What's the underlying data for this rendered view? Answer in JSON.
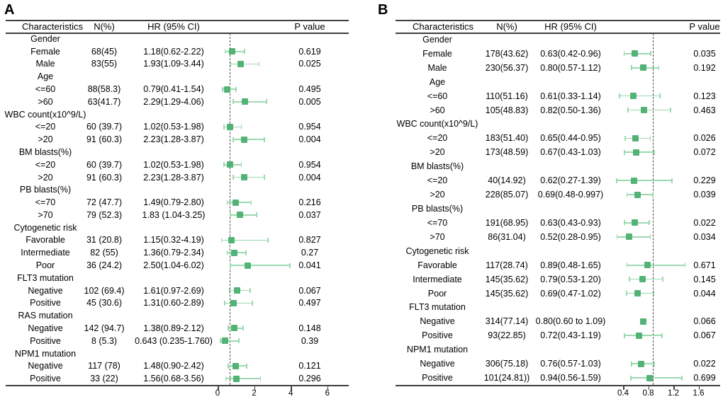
{
  "figure": {
    "type": "forest-plot-figure",
    "colors": {
      "marker": "#53b377",
      "whisker": "#9bd9b0",
      "reference_line": "#4a4a4a",
      "rule": "#3f3f3f",
      "text": "#000000"
    }
  },
  "chart_data": [
    {
      "type": "scatter",
      "subtype": "forest-plot",
      "panel_label": "A",
      "columns": {
        "characteristics": "Characteristics",
        "n": "N(%)",
        "hr": "HR (95% CI)",
        "p": "P value"
      },
      "x_ticks": [
        0,
        2,
        4,
        6
      ],
      "x_tick_labels": [
        "0",
        "2",
        "4",
        "6"
      ],
      "xlim": [
        -0.2,
        7.6
      ],
      "ref_line": 1,
      "legend": "none",
      "grid": false,
      "rows": [
        {
          "label": "Gender",
          "group": true
        },
        {
          "label": "Female",
          "n": "68(45)",
          "hr_text": "1.18(0.62-2.22)",
          "p": "0.619",
          "hr": 1.18,
          "lo": 0.62,
          "hi": 2.22
        },
        {
          "label": "Male",
          "n": "83(55)",
          "hr_text": "1.93(1.09-3.44)",
          "p": "0.025",
          "hr": 1.93,
          "lo": 1.09,
          "hi": 3.44
        },
        {
          "label": "Age",
          "group": true
        },
        {
          "label": "<=60",
          "n": "88(58.3)",
          "hr_text": "0.79(0.41-1.54)",
          "p": "0.495",
          "hr": 0.79,
          "lo": 0.41,
          "hi": 1.54
        },
        {
          "label": ">60",
          "n": "63(41.7)",
          "hr_text": "2.29(1.29-4.06)",
          "p": "0.005",
          "hr": 2.29,
          "lo": 1.29,
          "hi": 4.06
        },
        {
          "label": "WBC count(x10^9/L)",
          "group": true
        },
        {
          "label": "<=20",
          "n": "60 (39.7)",
          "hr_text": "1.02(0.53-1.98)",
          "p": "0.954",
          "hr": 1.02,
          "lo": 0.53,
          "hi": 1.98
        },
        {
          "label": ">20",
          "n": "91 (60.3)",
          "hr_text": "2.23(1.28-3.87)",
          "p": "0.004",
          "hr": 2.23,
          "lo": 1.28,
          "hi": 3.87
        },
        {
          "label": "BM blasts(%)",
          "group": true
        },
        {
          "label": "<=20",
          "n": "60 (39.7)",
          "hr_text": "1.02(0.53-1.98)",
          "p": "0.954",
          "hr": 1.02,
          "lo": 0.53,
          "hi": 1.98
        },
        {
          "label": ">20",
          "n": "91 (60.3)",
          "hr_text": "2.23(1.28-3.87)",
          "p": "0.004",
          "hr": 2.23,
          "lo": 1.28,
          "hi": 3.87
        },
        {
          "label": "PB blasts(%)",
          "group": true
        },
        {
          "label": "<=70",
          "n": "72 (47.7)",
          "hr_text": "1.49(0.79-2.80)",
          "p": "0.216",
          "hr": 1.49,
          "lo": 0.79,
          "hi": 2.8
        },
        {
          "label": ">70",
          "n": "79 (52.3)",
          "hr_text": "1.83 (1.04-3.25)",
          "p": "0.037",
          "hr": 1.83,
          "lo": 1.04,
          "hi": 3.25
        },
        {
          "label": "Cytogenetic risk",
          "group": true
        },
        {
          "label": "Favorable",
          "n": "31 (20.8)",
          "hr_text": "1.15(0.32-4.19)",
          "p": "0.827",
          "hr": 1.15,
          "lo": 0.32,
          "hi": 4.19
        },
        {
          "label": "Intermediate",
          "n": "82 (55)",
          "hr_text": "1.36(0.79-2.34)",
          "p": "0.27",
          "hr": 1.36,
          "lo": 0.79,
          "hi": 2.34
        },
        {
          "label": "Poor",
          "n": "36 (24.2)",
          "hr_text": "2.50(1.04-6.02)",
          "p": "0.041",
          "hr": 2.5,
          "lo": 1.04,
          "hi": 6.02
        },
        {
          "label": "FLT3 mutation",
          "group": true
        },
        {
          "label": "Negative",
          "n": "102 (69.4)",
          "hr_text": "1.61(0.97-2.69)",
          "p": "0.067",
          "hr": 1.61,
          "lo": 0.97,
          "hi": 2.69
        },
        {
          "label": "Positive",
          "n": "45 (30.6)",
          "hr_text": "1.31(0.60-2.89)",
          "p": "0.497",
          "hr": 1.31,
          "lo": 0.6,
          "hi": 2.89
        },
        {
          "label": "RAS mutation",
          "group": true
        },
        {
          "label": "Negative",
          "n": "142 (94.7)",
          "hr_text": "1.38(0.89-2.12)",
          "p": "0.148",
          "hr": 1.38,
          "lo": 0.89,
          "hi": 2.12
        },
        {
          "label": "Positive",
          "n": "8 (5.3)",
          "hr_text": "0.643 (0.235-1.760)",
          "p": "0.39",
          "hr": 0.643,
          "lo": 0.235,
          "hi": 1.76
        },
        {
          "label": "NPM1 mutation",
          "group": true
        },
        {
          "label": "Negative",
          "n": "117 (78)",
          "hr_text": "1.48(0.90-2.42)",
          "p": "0.121",
          "hr": 1.48,
          "lo": 0.9,
          "hi": 2.42
        },
        {
          "label": "Positive",
          "n": "33 (22)",
          "hr_text": "1.56(0.68-3.56)",
          "p": "0.296",
          "hr": 1.56,
          "lo": 0.68,
          "hi": 3.56
        }
      ]
    },
    {
      "type": "scatter",
      "subtype": "forest-plot",
      "panel_label": "B",
      "columns": {
        "characteristics": "Characteristics",
        "n": "N(%)",
        "hr": "HR (95% CI)",
        "p": "P value"
      },
      "x_ticks": [
        0.4,
        0.8,
        1.2,
        1.6
      ],
      "x_tick_labels": [
        "0.4",
        "0.8",
        "1.2",
        "1.6"
      ],
      "xlim": [
        0.15,
        1.8
      ],
      "ref_line": 1,
      "legend": "none",
      "grid": false,
      "rows": [
        {
          "label": "Gender",
          "group": true
        },
        {
          "label": "Female",
          "n": "178(43.62)",
          "hr_text": "0.63(0.42-0.96)",
          "p": "0.035",
          "hr": 0.63,
          "lo": 0.42,
          "hi": 0.96
        },
        {
          "label": "Male",
          "n": "230(56.37)",
          "hr_text": "0.80(0.57-1.12)",
          "p": "0.192",
          "hr": 0.8,
          "lo": 0.57,
          "hi": 1.12
        },
        {
          "label": "Age",
          "group": true
        },
        {
          "label": "<=60",
          "n": "110(51.16)",
          "hr_text": "0.61(0.33-1.14)",
          "p": "0.123",
          "hr": 0.61,
          "lo": 0.33,
          "hi": 1.14
        },
        {
          "label": ">60",
          "n": "105(48.83)",
          "hr_text": "0.82(0.50-1.36)",
          "p": "0.463",
          "hr": 0.82,
          "lo": 0.5,
          "hi": 1.36
        },
        {
          "label": "WBC count(x10^9/L)",
          "group": true
        },
        {
          "label": "<=20",
          "n": "183(51.40)",
          "hr_text": "0.65(0.44-0.95)",
          "p": "0.026",
          "hr": 0.65,
          "lo": 0.44,
          "hi": 0.95
        },
        {
          "label": ">20",
          "n": "173(48.59)",
          "hr_text": "0.67(0.43-1.03)",
          "p": "0.072",
          "hr": 0.67,
          "lo": 0.43,
          "hi": 1.03
        },
        {
          "label": "BM blasts(%)",
          "group": true
        },
        {
          "label": "<=20",
          "n": "40(14.92)",
          "hr_text": "0.62(0.27-1.39)",
          "p": "0.229",
          "hr": 0.62,
          "lo": 0.27,
          "hi": 1.39
        },
        {
          "label": ">20",
          "n": "228(85.07)",
          "hr_text": "0.69(0.48-0.997)",
          "p": "0.039",
          "hr": 0.69,
          "lo": 0.48,
          "hi": 0.997
        },
        {
          "label": "PB blasts(%)",
          "group": true
        },
        {
          "label": "<=70",
          "n": "191(68.95)",
          "hr_text": "0.63(0.43-0.93)",
          "p": "0.022",
          "hr": 0.63,
          "lo": 0.43,
          "hi": 0.93
        },
        {
          "label": ">70",
          "n": "86(31.04)",
          "hr_text": "0.52(0.28-0.95)",
          "p": "0.034",
          "hr": 0.52,
          "lo": 0.28,
          "hi": 0.95
        },
        {
          "label": "Cytogenetic risk",
          "group": true
        },
        {
          "label": "Favorable",
          "n": "117(28.74)",
          "hr_text": "0.89(0.48-1.65)",
          "p": "0.671",
          "hr": 0.89,
          "lo": 0.48,
          "hi": 1.65
        },
        {
          "label": "Intermediate",
          "n": "145(35.62)",
          "hr_text": "0.79(0.53-1.20)",
          "p": "0.145",
          "hr": 0.79,
          "lo": 0.53,
          "hi": 1.2
        },
        {
          "label": "Poor",
          "n": "145(35.62)",
          "hr_text": "0.69(0.47-1.02)",
          "p": "0.044",
          "hr": 0.69,
          "lo": 0.47,
          "hi": 1.02
        },
        {
          "label": "FLT3 mutation",
          "group": true
        },
        {
          "label": "Negative",
          "n": "314(77.14)",
          "hr_text": "0.80(0.60 to 1.09)",
          "p": "0.066",
          "hr": 0.8,
          "lo": null,
          "hi": null
        },
        {
          "label": "Positive",
          "n": "93(22.85)",
          "hr_text": "0.72(0.43-1.19)",
          "p": "0.067",
          "hr": 0.72,
          "lo": 0.43,
          "hi": 1.19
        },
        {
          "label": "NPM1 mutation",
          "group": true
        },
        {
          "label": "Negative",
          "n": "306(75.18)",
          "hr_text": "0.76(0.57-1.03)",
          "p": "0.022",
          "hr": 0.76,
          "lo": 0.57,
          "hi": 1.03
        },
        {
          "label": "Positive",
          "n": "101(24.81))",
          "hr_text": "0.94(0.56-1.59)",
          "p": "0.699",
          "hr": 0.94,
          "lo": 0.56,
          "hi": 1.59
        }
      ]
    }
  ]
}
